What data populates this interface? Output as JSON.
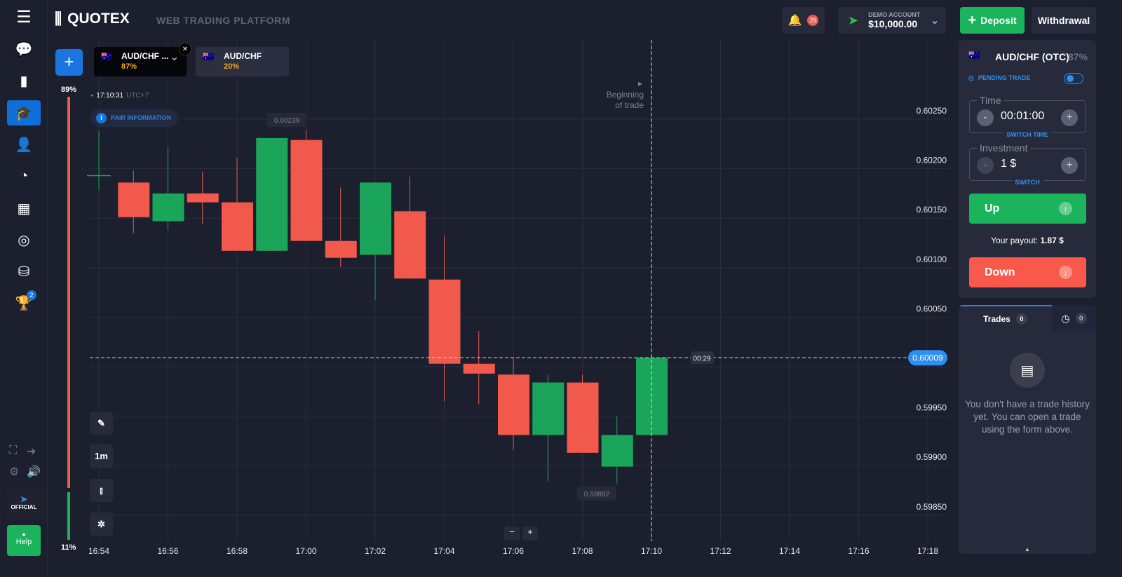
{
  "header": {
    "brand": "QUOTEX",
    "subtitle": "WEB TRADING PLATFORM",
    "notifications": "29",
    "account_label": "DEMO ACCOUNT",
    "balance": "$10,000.00",
    "deposit": "Deposit",
    "withdrawal": "Withdrawal"
  },
  "sidebar": {
    "trophy_badge": "2",
    "official": "OFFICIAL",
    "help": "Help"
  },
  "asset_tabs": [
    {
      "name": "AUD/CHF ...",
      "payout": "87%"
    },
    {
      "name": "AUD/CHF",
      "payout": "20%"
    }
  ],
  "chart": {
    "clock": "17:10:31",
    "tz": "UTC+7",
    "pair_info": "PAIR INFORMATION",
    "up_pct": "89%",
    "down_pct": "11%",
    "sentiment_up": 89,
    "beginning_line1": "Beginning",
    "beginning_line2": "of trade",
    "timer": "00:29",
    "timeframe": "1m",
    "zoom_minus": "−",
    "zoom_plus": "+"
  },
  "chart_data": {
    "type": "candlestick",
    "x": [
      "16:54",
      "16:55",
      "16:56",
      "16:57",
      "16:58",
      "16:59",
      "17:00",
      "17:01",
      "17:02",
      "17:03",
      "17:04",
      "17:05",
      "17:06",
      "17:07",
      "17:08",
      "17:09",
      "17:10"
    ],
    "ohlc": [
      [
        0.60193,
        0.60238,
        0.60178,
        0.60193
      ],
      [
        0.60186,
        0.60198,
        0.60135,
        0.60151
      ],
      [
        0.60147,
        0.60222,
        0.60138,
        0.60175
      ],
      [
        0.60175,
        0.60197,
        0.60144,
        0.60166
      ],
      [
        0.60166,
        0.60211,
        0.60117,
        0.60117
      ],
      [
        0.60117,
        0.60231,
        0.60117,
        0.60231
      ],
      [
        0.60229,
        0.60239,
        0.60127,
        0.60127
      ],
      [
        0.60127,
        0.60181,
        0.60101,
        0.6011
      ],
      [
        0.60113,
        0.60186,
        0.60067,
        0.60186
      ],
      [
        0.60157,
        0.60192,
        0.60089,
        0.60089
      ],
      [
        0.60088,
        0.60132,
        0.59965,
        0.60003
      ],
      [
        0.60003,
        0.60036,
        0.59962,
        0.59993
      ],
      [
        0.59992,
        0.60009,
        0.59916,
        0.59931
      ],
      [
        0.59931,
        0.59992,
        0.59884,
        0.59984
      ],
      [
        0.59984,
        0.59992,
        0.59913,
        0.59913
      ],
      [
        0.59899,
        0.5995,
        0.59882,
        0.59931
      ],
      [
        0.59931,
        0.60009,
        0.59931,
        0.60009
      ]
    ],
    "y_ticks": [
      "0.60250",
      "0.60200",
      "0.60150",
      "0.60100",
      "0.60050",
      "0.59950",
      "0.59900",
      "0.59850"
    ],
    "x_ticks": [
      "16:54",
      "16:56",
      "16:58",
      "17:00",
      "17:02",
      "17:04",
      "17:06",
      "17:08",
      "17:10",
      "17:12",
      "17:14",
      "17:16",
      "17:18"
    ],
    "current_price": "0.60009",
    "max_label": "0.60239",
    "min_label": "0.59882",
    "ylim": [
      0.5982,
      0.6027
    ],
    "colors": {
      "up": "#1ba55a",
      "down": "#f0594c",
      "current": "#2d8ff0"
    }
  },
  "panel": {
    "pair": "AUD/CHF (OTC)",
    "payout": "87%",
    "pending": "PENDING TRADE",
    "time_label": "Time",
    "time_value": "00:01:00",
    "switch_time": "SWITCH TIME",
    "invest_label": "Investment",
    "invest_value": "1 $",
    "switch": "SWITCH",
    "up": "Up",
    "payout_label": "Your payout:",
    "payout_value": "1.87 $",
    "down": "Down"
  },
  "trades": {
    "tab": "Trades",
    "count": "0",
    "pending_count": "0",
    "empty": "You don't have a trade history yet. You can open a trade using the form above."
  }
}
